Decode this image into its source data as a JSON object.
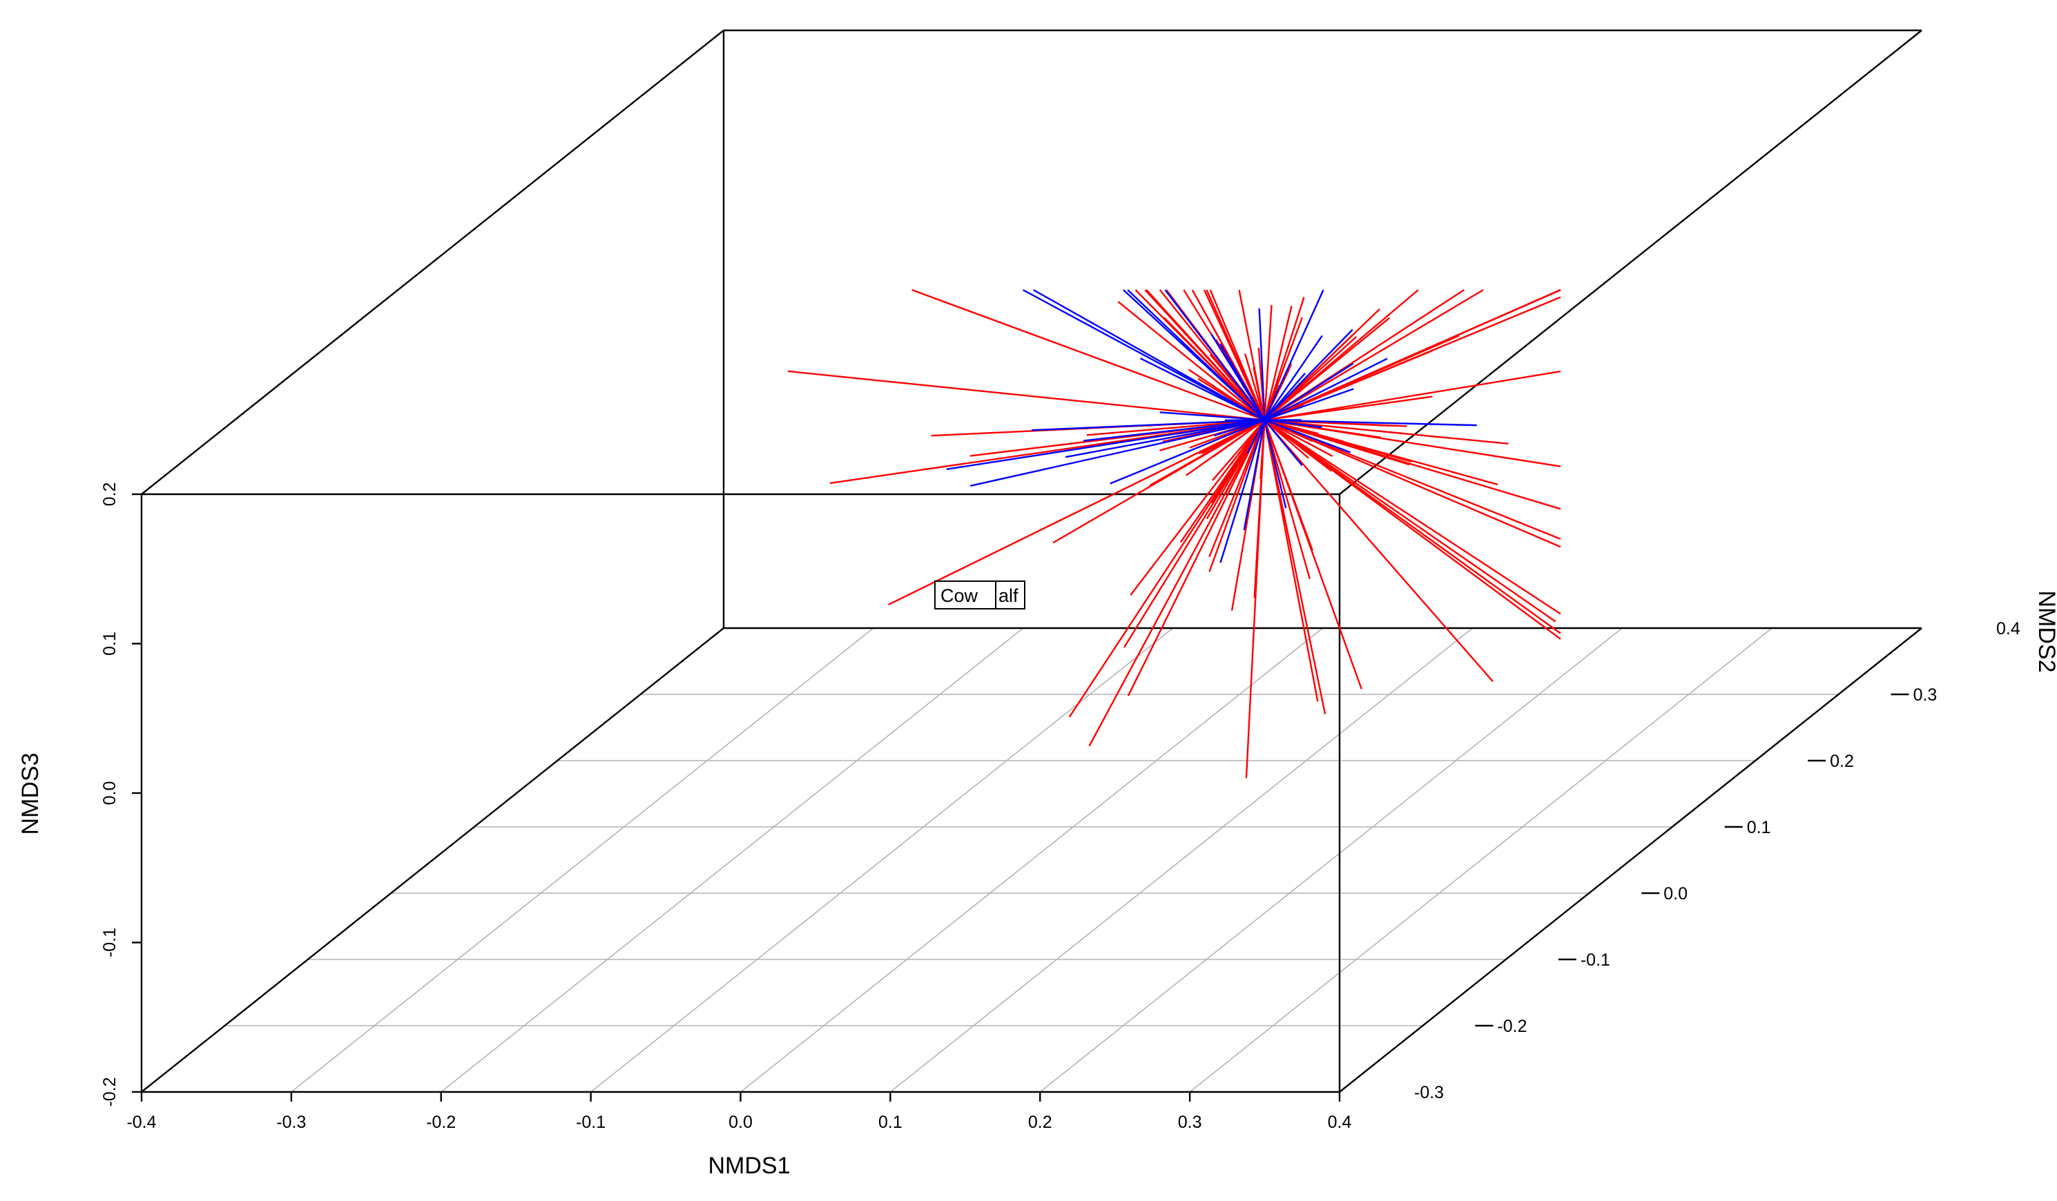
{
  "chart_data": {
    "type": "scatter",
    "subtype": "3d-spider",
    "title": "",
    "axes": {
      "x": {
        "label": "NMDS1",
        "range": [
          -0.4,
          0.4
        ],
        "ticks": [
          "-0.4",
          "-0.3",
          "-0.2",
          "-0.1",
          "0.0",
          "0.1",
          "0.2",
          "0.3",
          "0.4"
        ]
      },
      "y": {
        "label": "NMDS2",
        "range": [
          -0.3,
          0.4
        ],
        "ticks": [
          "-0.3",
          "-0.2",
          "-0.1",
          "0.0",
          "0.1",
          "0.2",
          "0.3",
          "0.4"
        ]
      },
      "z": {
        "label": "NMDS3",
        "range": [
          -0.2,
          0.2
        ],
        "ticks": [
          "-0.2",
          "-0.1",
          "0.0",
          "0.1",
          "0.2"
        ]
      }
    },
    "grid": true,
    "groups": [
      {
        "label": "Cow",
        "color": "#ff0000"
      },
      {
        "label": "Calf",
        "color": "#0000ff"
      }
    ],
    "group_label_text": [
      "Cow",
      "alf"
    ],
    "centroid": {
      "x": 0.15,
      "y": 0.06,
      "z": 0.09
    }
  }
}
